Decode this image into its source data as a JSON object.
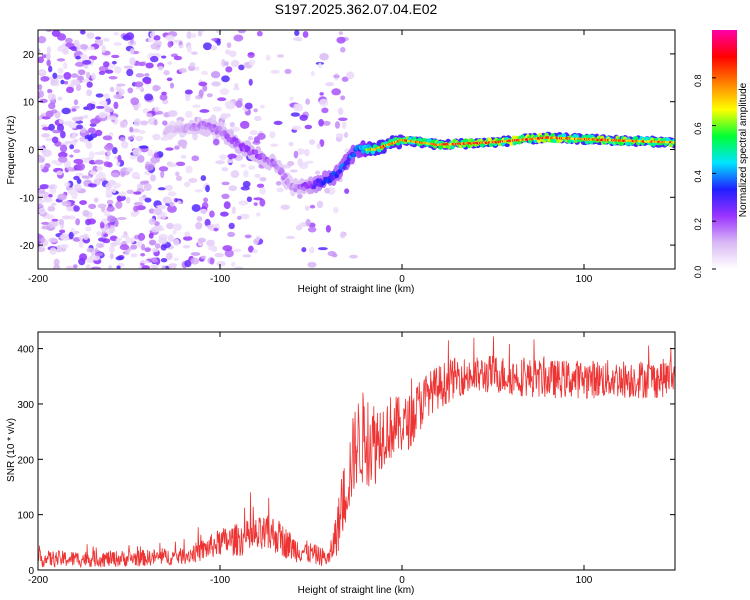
{
  "title": "S197.2025.362.07.04.E02",
  "chart_data": [
    {
      "type": "heatmap",
      "title": "S197.2025.362.07.04.E02",
      "xlabel": "Height of straight line (km)",
      "ylabel": "Frequency (Hz)",
      "xlim": [
        -200,
        150
      ],
      "ylim": [
        -25,
        25
      ],
      "xticks": [
        -200,
        -100,
        0,
        100
      ],
      "yticks": [
        -20,
        -10,
        0,
        10,
        20
      ],
      "colorbar": {
        "label": "Normalized spectral amplitude",
        "range": [
          0.0,
          1.0
        ],
        "ticks": [
          0.0,
          0.2,
          0.4,
          0.6,
          0.8
        ],
        "tick_labels": [
          "0.0",
          "0.2",
          "0.4",
          "0.6",
          "0.8"
        ],
        "colors": [
          "#ffffff",
          "#d9b8f5",
          "#9a33ff",
          "#1f1fff",
          "#00e5ff",
          "#00ff33",
          "#ffff00",
          "#ff8000",
          "#ff0000",
          "#ff00aa"
        ]
      },
      "ridge": [
        {
          "x": -125,
          "y": 4,
          "amp": 0.15
        },
        {
          "x": -110,
          "y": 5,
          "amp": 0.25
        },
        {
          "x": -100,
          "y": 4,
          "amp": 0.25
        },
        {
          "x": -90,
          "y": 1,
          "amp": 0.3
        },
        {
          "x": -80,
          "y": -1,
          "amp": 0.3
        },
        {
          "x": -70,
          "y": -3,
          "amp": 0.25
        },
        {
          "x": -60,
          "y": -8,
          "amp": 0.2
        },
        {
          "x": -45,
          "y": -7,
          "amp": 0.45
        },
        {
          "x": -35,
          "y": -5,
          "amp": 0.5
        },
        {
          "x": -25,
          "y": 0,
          "amp": 0.55
        },
        {
          "x": -15,
          "y": 0,
          "amp": 0.85
        },
        {
          "x": 0,
          "y": 2,
          "amp": 0.8
        },
        {
          "x": 20,
          "y": 1,
          "amp": 0.85
        },
        {
          "x": 50,
          "y": 1.5,
          "amp": 0.9
        },
        {
          "x": 80,
          "y": 2.5,
          "amp": 0.85
        },
        {
          "x": 110,
          "y": 2,
          "amp": 0.85
        },
        {
          "x": 150,
          "y": 1.5,
          "amp": 0.85
        }
      ]
    },
    {
      "type": "line",
      "xlabel": "Height of straight line (km)",
      "ylabel": "SNR (10 * v/v)",
      "xlim": [
        -200,
        150
      ],
      "ylim": [
        0,
        430
      ],
      "xticks": [
        -200,
        -100,
        0,
        100
      ],
      "yticks": [
        0,
        100,
        200,
        300,
        400
      ],
      "color": "#ee3333",
      "series": [
        {
          "name": "SNR",
          "x": [
            -200,
            -180,
            -160,
            -140,
            -120,
            -110,
            -100,
            -90,
            -80,
            -70,
            -60,
            -50,
            -40,
            -35,
            -30,
            -25,
            -20,
            -15,
            -10,
            -5,
            0,
            5,
            10,
            15,
            20,
            25,
            30,
            40,
            50,
            60,
            80,
            100,
            120,
            140,
            150
          ],
          "values": [
            20,
            20,
            20,
            22,
            25,
            35,
            50,
            55,
            60,
            65,
            40,
            30,
            20,
            80,
            160,
            230,
            240,
            230,
            250,
            260,
            260,
            270,
            300,
            320,
            330,
            340,
            350,
            350,
            355,
            350,
            345,
            345,
            345,
            345,
            350
          ],
          "noise": [
            15,
            15,
            15,
            15,
            15,
            20,
            25,
            30,
            35,
            35,
            25,
            20,
            15,
            50,
            70,
            80,
            90,
            80,
            60,
            60,
            50,
            50,
            50,
            40,
            40,
            40,
            35,
            35,
            35,
            35,
            35,
            35,
            35,
            35,
            35
          ]
        }
      ]
    }
  ]
}
